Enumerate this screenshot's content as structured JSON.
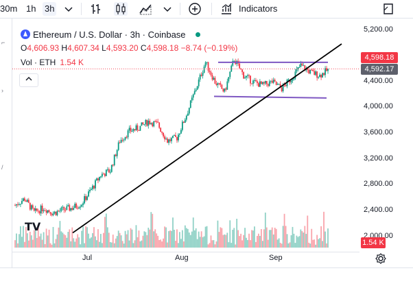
{
  "toolbar": {
    "intervals": [
      {
        "label": "30m",
        "active": false
      },
      {
        "label": "1h",
        "active": false
      },
      {
        "label": "3h",
        "active": true
      }
    ],
    "indicators_label": "Indicators"
  },
  "legend": {
    "title": "Ethereum / U.S. Dollar · 3h · Coinbase",
    "ohlc": {
      "o_label": "O",
      "o": "4,606.93",
      "h_label": "H",
      "h": "4,607.34",
      "l_label": "L",
      "l": "4,593.20",
      "c_label": "C",
      "c": "4,598.18",
      "change": "−8.74 (−0.19%)"
    },
    "volume_label": "Vol · ETH",
    "volume_value": "1.54 K"
  },
  "price_axis": {
    "labels": [
      "5,200.00",
      "4,400.00",
      "4,000.00",
      "3,600.00",
      "3,200.00",
      "2,800.00",
      "2,400.00",
      "2,000.00"
    ],
    "last_price_tag": "4,598.18",
    "crosshair_tag": "4,592.17",
    "volume_tag": "1.54 K"
  },
  "time_axis": {
    "labels": [
      "Jul",
      "Aug",
      "Sep"
    ]
  },
  "colors": {
    "up": "#089981",
    "down": "#f23645",
    "trendline": "#000000",
    "channel": "#7e57c2"
  },
  "watermark": "TV",
  "chart_data": {
    "type": "candlestick",
    "series_name": "ETH/USD",
    "x": [
      "Jun-15",
      "Jun-18",
      "Jun-21",
      "Jun-24",
      "Jun-27",
      "Jun-30",
      "Jul-03",
      "Jul-06",
      "Jul-09",
      "Jul-12",
      "Jul-15",
      "Jul-18",
      "Jul-21",
      "Jul-24",
      "Jul-27",
      "Jul-30",
      "Aug-02",
      "Aug-05",
      "Aug-08",
      "Aug-11",
      "Aug-14",
      "Aug-17",
      "Aug-20",
      "Aug-23",
      "Aug-26",
      "Aug-29",
      "Sep-01",
      "Sep-04",
      "Sep-07",
      "Sep-10",
      "Sep-13",
      "Sep-16",
      "Sep-19",
      "Sep-22"
    ],
    "close": [
      2520,
      2620,
      2410,
      2480,
      2400,
      2450,
      2480,
      2550,
      2760,
      2980,
      3050,
      3500,
      3650,
      3700,
      3800,
      3750,
      3500,
      3550,
      3900,
      4300,
      4700,
      4400,
      4250,
      4750,
      4500,
      4400,
      4350,
      4400,
      4300,
      4450,
      4650,
      4550,
      4500,
      4598
    ],
    "ylim": [
      2000,
      5200
    ],
    "trendline": {
      "start": [
        "Jun-25",
        2100
      ],
      "end": [
        "Sep-26",
        4980
      ]
    },
    "channel": {
      "upper": 4700,
      "lower": 4180
    }
  }
}
